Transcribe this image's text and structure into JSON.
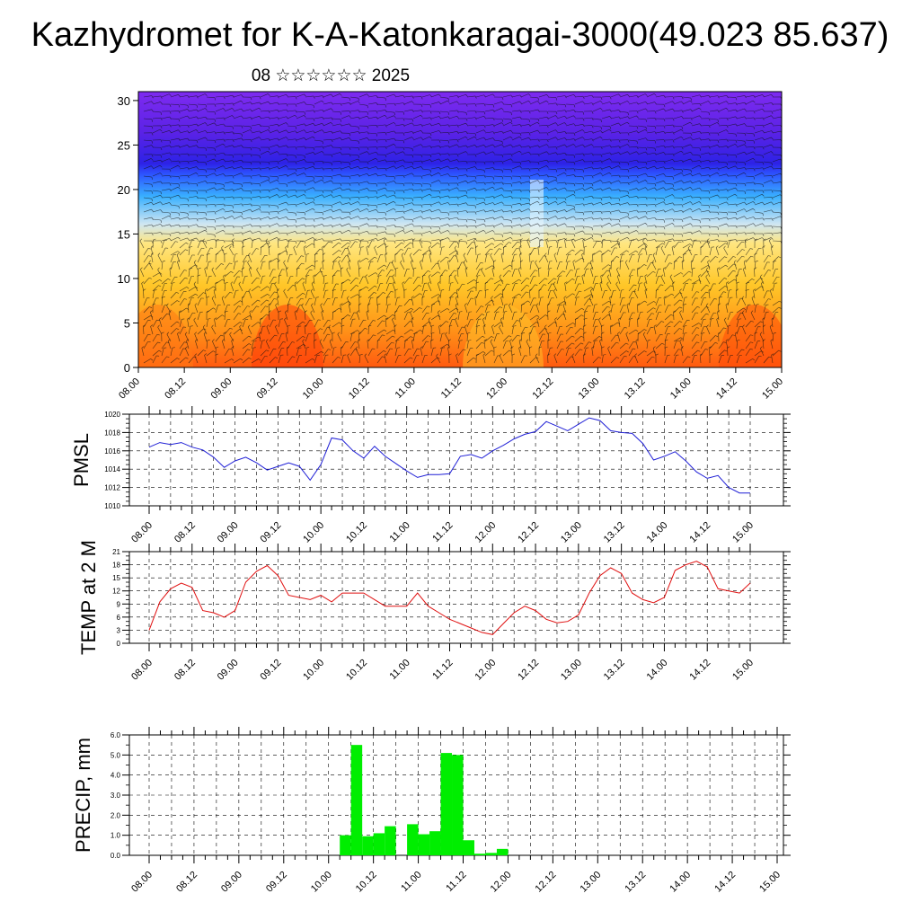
{
  "header": {
    "title": "Kazhydromet for K-A-Katonkaragai-3000(49.023 85.637)",
    "subtitle": "08 ☆☆☆☆☆☆ 2025"
  },
  "chart_data": [
    {
      "type": "heatmap",
      "title": "",
      "xlabel": "",
      "ylabel": "",
      "x_ticks": [
        "08.00",
        "08.12",
        "09.00",
        "09.12",
        "10.00",
        "10.12",
        "11.00",
        "11.12",
        "12.00",
        "12.12",
        "13.00",
        "13.12",
        "14.00",
        "14.12",
        "15.00"
      ],
      "y_ticks": [
        "0",
        "5",
        "10",
        "15",
        "20",
        "25",
        "30"
      ],
      "ylim": [
        0,
        31
      ],
      "description_of_field": "temperature cross-section with wind barbs; warm red/orange near surface, yellow to level 15, blue 15-22, purple above"
    },
    {
      "type": "line",
      "ylabel": "PMSL",
      "ylim": [
        1010,
        1020
      ],
      "y_ticks": [
        "1010",
        "1012",
        "1014",
        "1016",
        "1018",
        "1020"
      ],
      "x_ticks": [
        "08.00",
        "08.12",
        "09.00",
        "09.12",
        "10.00",
        "10.12",
        "11.00",
        "11.12",
        "12.00",
        "12.12",
        "13.00",
        "13.12",
        "14.00",
        "14.12",
        "15.00"
      ],
      "series": [
        {
          "values": [
            1016.4,
            1016.9,
            1016.7,
            1016.9,
            1016.4,
            1016.1,
            1015.3,
            1014.2,
            1014.9,
            1015.3,
            1014.7,
            1013.9,
            1014.3,
            1014.7,
            1014.3,
            1012.8,
            1014.5,
            1017.4,
            1017.2,
            1016.0,
            1015.2,
            1016.5,
            1015.4,
            1014.6,
            1013.8,
            1013.1,
            1013.4,
            1013.4,
            1013.5,
            1015.4,
            1015.6,
            1015.2,
            1016.0,
            1016.6,
            1017.3,
            1017.8,
            1018.1,
            1019.2,
            1018.7,
            1018.2,
            1018.9,
            1019.6,
            1019.3,
            1018.2,
            1018.0,
            1017.9,
            1016.8,
            1015.0,
            1015.4,
            1015.9,
            1014.9,
            1013.7,
            1013.0,
            1013.3,
            1012.0,
            1011.4,
            1011.4
          ],
          "color": "#1f1fd6"
        }
      ]
    },
    {
      "type": "line",
      "ylabel": "TEMP at 2 M",
      "ylim": [
        0,
        21
      ],
      "y_ticks": [
        "0",
        "3",
        "6",
        "9",
        "12",
        "15",
        "18",
        "21"
      ],
      "x_ticks": [
        "08.00",
        "08.12",
        "09.00",
        "09.12",
        "10.00",
        "10.12",
        "11.00",
        "11.12",
        "12.00",
        "12.12",
        "13.00",
        "13.12",
        "14.00",
        "14.12",
        "15.00"
      ],
      "series": [
        {
          "values": [
            3.0,
            9.5,
            12.5,
            13.8,
            12.8,
            7.5,
            7.0,
            6.0,
            7.5,
            14.0,
            16.5,
            17.8,
            15.5,
            11.0,
            10.5,
            10.0,
            11.0,
            9.5,
            11.5,
            11.5,
            11.5,
            10.0,
            8.5,
            8.5,
            8.5,
            11.5,
            8.5,
            7.0,
            5.5,
            4.5,
            3.5,
            2.5,
            2.0,
            4.5,
            7.0,
            8.5,
            7.5,
            5.5,
            4.7,
            5.0,
            6.5,
            11.5,
            15.5,
            17.3,
            16.0,
            11.5,
            10.0,
            9.3,
            10.5,
            16.7,
            18.0,
            18.8,
            17.5,
            12.5,
            12.0,
            11.5,
            13.8
          ],
          "color": "#e01010"
        }
      ]
    },
    {
      "type": "bar",
      "ylabel": "PRECIP, mm",
      "ylim": [
        0,
        6
      ],
      "y_ticks": [
        "0.0",
        "1.0",
        "2.0",
        "3.0",
        "4.0",
        "5.0",
        "6.0"
      ],
      "x_ticks": [
        "08.00",
        "08.12",
        "09.00",
        "09.12",
        "10.00",
        "10.12",
        "11.00",
        "11.12",
        "12.00",
        "12.12",
        "13.00",
        "13.12",
        "14.00",
        "14.12",
        "15.00"
      ],
      "series": [
        {
          "values": [
            0,
            0,
            0,
            0,
            0,
            0,
            0,
            0,
            0,
            0,
            0,
            0,
            0,
            0,
            0,
            0,
            0,
            1.0,
            5.5,
            0.95,
            1.1,
            1.45,
            0,
            1.55,
            1.05,
            1.2,
            5.1,
            5.0,
            0.75,
            0.08,
            0.12,
            0.32,
            0,
            0,
            0,
            0,
            0,
            0,
            0,
            0,
            0,
            0,
            0,
            0,
            0,
            0,
            0,
            0,
            0,
            0,
            0,
            0,
            0,
            0,
            0,
            0
          ],
          "color": "#00ee00"
        }
      ]
    }
  ]
}
